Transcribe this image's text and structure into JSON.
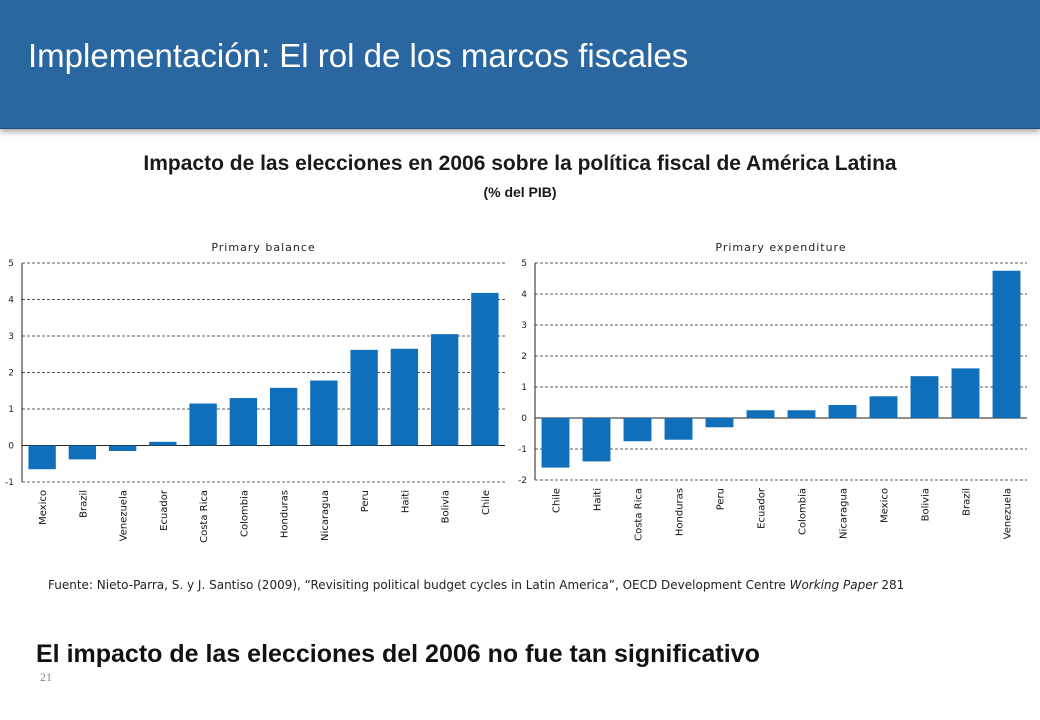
{
  "header": {
    "title": "Implementación: El rol de los marcos fiscales"
  },
  "main": {
    "title": "Impacto de las elecciones en 2006 sobre la política fiscal de América Latina",
    "subtitle": "(% del PIB)"
  },
  "chart_data": [
    {
      "type": "bar",
      "title": "Primary balance",
      "categories": [
        "Mexico",
        "Brazil",
        "Venezuela",
        "Ecuador",
        "Costa Rica",
        "Colombia",
        "Honduras",
        "Nicaragua",
        "Peru",
        "Haiti",
        "Bolivia",
        "Chile"
      ],
      "values": [
        -0.65,
        -0.38,
        -0.15,
        0.1,
        1.15,
        1.3,
        1.58,
        1.78,
        2.62,
        2.65,
        3.05,
        4.18
      ],
      "ylim": [
        -1,
        5
      ],
      "yticks": [
        -1,
        0,
        1,
        2,
        3,
        4,
        5
      ],
      "grid": true,
      "color": "#0f6fba"
    },
    {
      "type": "bar",
      "title": "Primary expenditure",
      "categories": [
        "Chile",
        "Haiti",
        "Costa Rica",
        "Honduras",
        "Peru",
        "Ecuador",
        "Colombia",
        "Nicaragua",
        "Mexico",
        "Bolivia",
        "Brazil",
        "Venezuela"
      ],
      "values": [
        -1.6,
        -1.4,
        -0.75,
        -0.7,
        -0.3,
        0.25,
        0.25,
        0.42,
        0.7,
        1.35,
        1.6,
        4.75
      ],
      "ylim": [
        -2,
        5
      ],
      "yticks": [
        -2,
        -1,
        0,
        1,
        2,
        3,
        4,
        5
      ],
      "grid": true,
      "color": "#0f6fba"
    }
  ],
  "source": {
    "prefix": "Fuente: Nieto-Parra, S. y J. Santiso (2009), “Revisiting political budget cycles in Latin America”, OECD Development Centre ",
    "italic": "Working Paper",
    "suffix": " 281"
  },
  "conclusion": "El impacto de las elecciones del 2006 no fue tan significativo",
  "slide_number": "21"
}
